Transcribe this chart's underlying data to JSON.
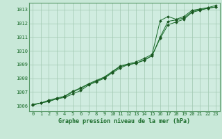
{
  "title": "Graphe pression niveau de la mer (hPa)",
  "background_color": "#c8e8d8",
  "plot_bg_color": "#d0ece0",
  "grid_color": "#a0c8b0",
  "line_color": "#1a6b2a",
  "marker_color": "#1a5520",
  "xlim": [
    -0.5,
    23.5
  ],
  "ylim": [
    1005.6,
    1013.5
  ],
  "xticks": [
    0,
    1,
    2,
    3,
    4,
    5,
    6,
    7,
    8,
    9,
    10,
    11,
    12,
    13,
    14,
    15,
    16,
    17,
    18,
    19,
    20,
    21,
    22,
    23
  ],
  "yticks": [
    1006,
    1007,
    1008,
    1009,
    1010,
    1011,
    1012,
    1013
  ],
  "series": [
    [
      1006.05,
      1006.2,
      1006.35,
      1006.5,
      1006.65,
      1007.0,
      1007.25,
      1007.55,
      1007.8,
      1008.05,
      1008.45,
      1008.85,
      1009.0,
      1009.1,
      1009.35,
      1009.65,
      1011.0,
      1012.15,
      1012.25,
      1012.4,
      1012.85,
      1013.0,
      1013.1,
      1013.2
    ],
    [
      1006.1,
      1006.2,
      1006.4,
      1006.55,
      1006.7,
      1007.05,
      1007.3,
      1007.6,
      1007.85,
      1008.1,
      1008.5,
      1008.9,
      1009.05,
      1009.2,
      1009.45,
      1009.75,
      1012.2,
      1012.5,
      1012.3,
      1012.5,
      1012.95,
      1013.05,
      1013.15,
      1013.3
    ],
    [
      1006.05,
      1006.2,
      1006.3,
      1006.5,
      1006.6,
      1006.85,
      1007.1,
      1007.5,
      1007.75,
      1008.0,
      1008.4,
      1008.75,
      1009.0,
      1009.1,
      1009.3,
      1009.65,
      1010.9,
      1011.9,
      1012.1,
      1012.3,
      1012.8,
      1012.95,
      1013.1,
      1013.2
    ]
  ]
}
